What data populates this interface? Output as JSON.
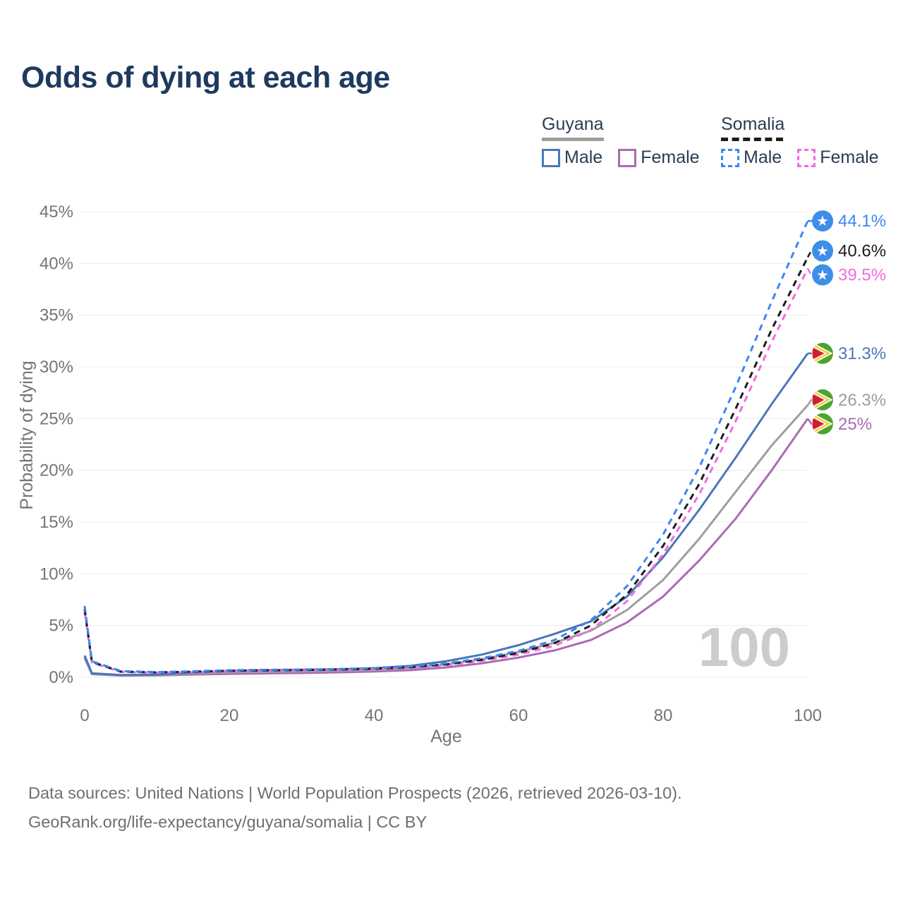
{
  "header": {
    "title": "Odds of dying at each age"
  },
  "legend": {
    "position": "top-right",
    "groups": [
      {
        "country": "Guyana",
        "line_color": "#9e9e9e",
        "line_style": "solid",
        "items": [
          {
            "label": "Male",
            "color": "#4a77b9",
            "style": "solid"
          },
          {
            "label": "Female",
            "color": "#ab6bb3",
            "style": "solid"
          }
        ]
      },
      {
        "country": "Somalia",
        "line_color": "#1c1c1c",
        "line_style": "dashed",
        "items": [
          {
            "label": "Male",
            "color": "#3c86f0",
            "style": "dashed"
          },
          {
            "label": "Female",
            "color": "#f16be4",
            "style": "dashed"
          }
        ]
      }
    ]
  },
  "flags": {
    "somalia": {
      "bg": "#3d8ee8",
      "star": "#ffffff",
      "star_glyph": "★"
    },
    "guyana": {
      "green": "#4ca32f",
      "yellow": "#f7cf3e",
      "red": "#cf1f34",
      "white": "#ffffff"
    }
  },
  "chart_data": {
    "type": "line",
    "title": "Odds of dying at each age",
    "xlabel": "Age",
    "ylabel": "Probability of dying",
    "watermark": "100",
    "grid": "horizontal",
    "legend_position": "top-right",
    "xlim": [
      0,
      100
    ],
    "ylim": [
      0,
      45
    ],
    "x_ticks": [
      0,
      20,
      40,
      60,
      80,
      100
    ],
    "y_ticks": [
      0,
      5,
      10,
      15,
      20,
      25,
      30,
      35,
      40,
      45
    ],
    "y_tick_suffix": "%",
    "ages": [
      0,
      1,
      5,
      10,
      15,
      20,
      25,
      30,
      35,
      40,
      45,
      50,
      55,
      60,
      65,
      70,
      75,
      80,
      85,
      90,
      95,
      100
    ],
    "series": [
      {
        "name": "Guyana Female",
        "country": "Guyana",
        "sex": "Female",
        "color": "#ab6bb3",
        "dashed": false,
        "end_label": "25%",
        "values": [
          1.85,
          0.3,
          0.16,
          0.18,
          0.26,
          0.33,
          0.37,
          0.41,
          0.47,
          0.55,
          0.68,
          0.95,
          1.35,
          1.9,
          2.6,
          3.6,
          5.3,
          7.8,
          11.3,
          15.3,
          20.0,
          25.0
        ]
      },
      {
        "name": "Guyana",
        "country": "Guyana",
        "sex": "Both",
        "color": "#9e9e9e",
        "dashed": false,
        "end_label": "26.3%",
        "values": [
          2.0,
          0.34,
          0.19,
          0.21,
          0.35,
          0.48,
          0.52,
          0.56,
          0.62,
          0.7,
          0.88,
          1.25,
          1.75,
          2.45,
          3.35,
          4.5,
          6.5,
          9.4,
          13.4,
          17.9,
          22.4,
          26.3
        ]
      },
      {
        "name": "Guyana Male",
        "country": "Guyana",
        "sex": "Male",
        "color": "#4a77b9",
        "dashed": false,
        "end_label": "31.3%",
        "values": [
          2.1,
          0.38,
          0.22,
          0.25,
          0.45,
          0.62,
          0.68,
          0.72,
          0.78,
          0.88,
          1.1,
          1.55,
          2.2,
          3.1,
          4.2,
          5.4,
          7.8,
          11.6,
          16.2,
          21.2,
          26.4,
          31.3
        ]
      },
      {
        "name": "Somalia Female",
        "country": "Somalia",
        "sex": "Female",
        "color": "#f16be4",
        "dashed": true,
        "end_label": "39.5%",
        "values": [
          6.3,
          1.42,
          0.51,
          0.44,
          0.5,
          0.58,
          0.62,
          0.66,
          0.7,
          0.77,
          0.9,
          1.15,
          1.58,
          2.18,
          3.05,
          4.55,
          7.35,
          11.9,
          17.7,
          24.7,
          32.4,
          39.5
        ]
      },
      {
        "name": "Somalia",
        "country": "Somalia",
        "sex": "Both",
        "color": "#1c1c1c",
        "dashed": true,
        "end_label": "40.6%",
        "values": [
          6.6,
          1.48,
          0.55,
          0.47,
          0.54,
          0.63,
          0.67,
          0.7,
          0.75,
          0.82,
          0.97,
          1.25,
          1.7,
          2.35,
          3.3,
          5.0,
          8.0,
          12.7,
          18.7,
          25.9,
          33.6,
          40.6
        ]
      },
      {
        "name": "Somalia Male",
        "country": "Somalia",
        "sex": "Male",
        "color": "#3c86f0",
        "dashed": true,
        "end_label": "44.1%",
        "values": [
          6.9,
          1.55,
          0.6,
          0.5,
          0.58,
          0.68,
          0.72,
          0.75,
          0.8,
          0.88,
          1.05,
          1.35,
          1.85,
          2.55,
          3.6,
          5.5,
          8.8,
          13.8,
          20.3,
          28.0,
          36.3,
          44.1
        ]
      }
    ]
  },
  "footer": {
    "line1": "Data sources: United Nations | World Population Prospects (2026, retrieved 2026-03-10).",
    "line2": "GeoRank.org/life-expectancy/guyana/somalia | CC BY"
  }
}
